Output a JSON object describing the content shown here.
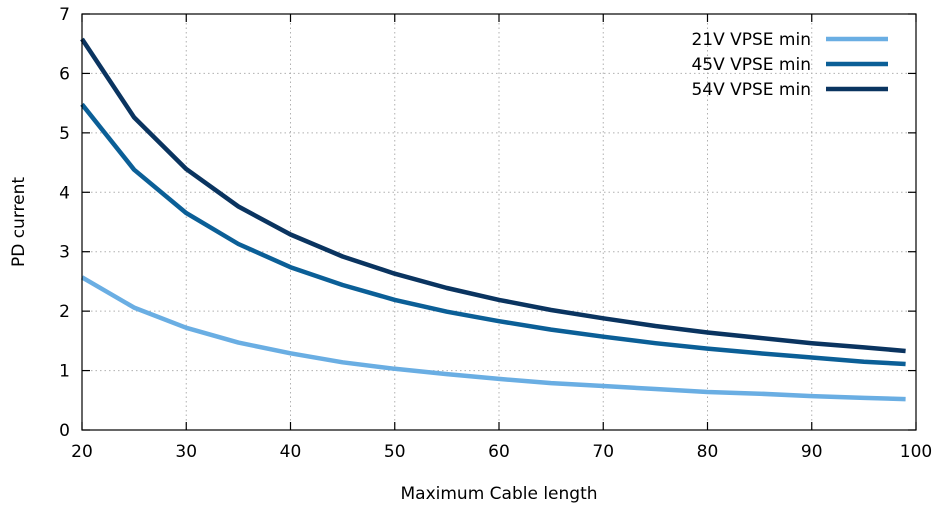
{
  "chart_data": {
    "type": "line",
    "title": "",
    "xlabel": "Maximum Cable length",
    "ylabel": "PD current",
    "xlim": [
      20,
      100
    ],
    "ylim": [
      0,
      7
    ],
    "xticks": [
      20,
      30,
      40,
      50,
      60,
      70,
      80,
      90,
      100
    ],
    "yticks": [
      0,
      1,
      2,
      3,
      4,
      5,
      6,
      7
    ],
    "grid": true,
    "legend_position": "top-right",
    "x": [
      20,
      25,
      30,
      35,
      40,
      45,
      50,
      55,
      60,
      65,
      70,
      75,
      80,
      85,
      90,
      95,
      99
    ],
    "series": [
      {
        "name": "21V VPSE min",
        "color": "#6aaee3",
        "values": [
          2.57,
          2.06,
          1.72,
          1.47,
          1.29,
          1.14,
          1.03,
          0.94,
          0.86,
          0.79,
          0.74,
          0.69,
          0.64,
          0.61,
          0.57,
          0.54,
          0.52
        ]
      },
      {
        "name": "45V VPSE min",
        "color": "#0b5f97",
        "values": [
          5.48,
          4.38,
          3.65,
          3.13,
          2.74,
          2.44,
          2.19,
          1.99,
          1.83,
          1.69,
          1.57,
          1.46,
          1.37,
          1.29,
          1.22,
          1.15,
          1.11
        ]
      },
      {
        "name": "54V VPSE min",
        "color": "#0a3460",
        "values": [
          6.58,
          5.26,
          4.39,
          3.76,
          3.29,
          2.92,
          2.63,
          2.39,
          2.19,
          2.02,
          1.88,
          1.75,
          1.64,
          1.55,
          1.46,
          1.39,
          1.33
        ]
      }
    ]
  }
}
